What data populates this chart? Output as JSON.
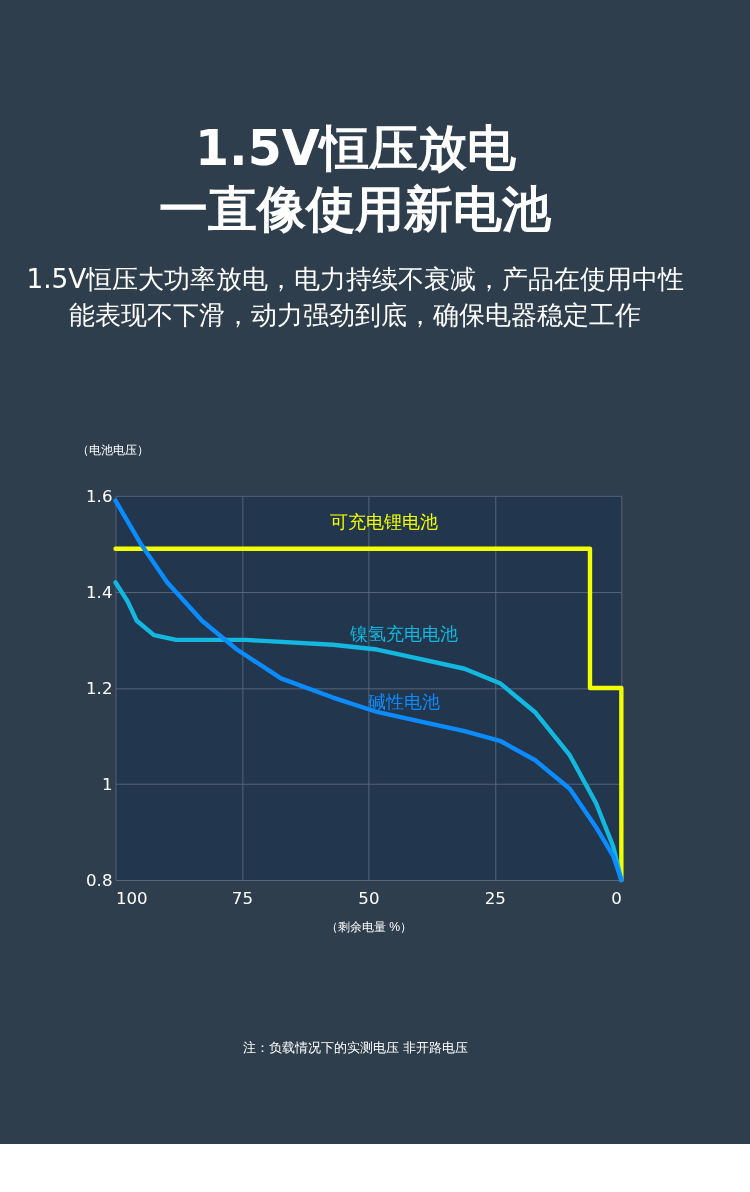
{
  "chart_data": {
    "type": "line",
    "title": "1.5V恒压放电一直像使用新电池",
    "subtitle": "1.5V恒压大功率放电，电力持续不衰减，产品在使用中性能表现不下滑，动力强劲到底，确保电器稳定工作",
    "xlabel": "（剩余电量 %）",
    "ylabel": "（电池电压）",
    "annotations": [
      "注：负载情况下的实测电压 非开路电压"
    ],
    "xlim": [
      100,
      0
    ],
    "xticks": [
      100,
      75,
      50,
      25,
      0
    ],
    "ylim": [
      0.8,
      1.6
    ],
    "yticks": [
      0.8,
      1.2,
      1.4,
      1.6,
      {
        "value": 1.0,
        "label": "1"
      }
    ],
    "grid": true,
    "legend": false,
    "marker": "none",
    "line_style": "solid",
    "series": [
      {
        "name": "可充电锂电池",
        "color": "#f2ff00",
        "x": [
          100,
          6.2,
          6.2,
          0,
          0
        ],
        "values": [
          1.49,
          1.49,
          1.2,
          1.2,
          0.8
        ]
      },
      {
        "name": "镍氢充电电池",
        "color": "#12b8df",
        "x": [
          100,
          97.6,
          95.8,
          92.4,
          88,
          74.2,
          57,
          48.3,
          39.6,
          31,
          24,
          17.1,
          10.2,
          5,
          1.6,
          0
        ],
        "values": [
          1.42,
          1.38,
          1.34,
          1.31,
          1.3,
          1.3,
          1.29,
          1.28,
          1.26,
          1.24,
          1.21,
          1.15,
          1.06,
          0.96,
          0.87,
          0.8
        ]
      },
      {
        "name": "碱性电池",
        "color": "#0a8cff",
        "x": [
          100,
          95,
          89.8,
          82.9,
          76,
          67.3,
          57,
          48.3,
          39.6,
          31,
          24,
          17.1,
          10.2,
          5,
          1.6,
          0
        ],
        "values": [
          1.59,
          1.5,
          1.42,
          1.34,
          1.28,
          1.22,
          1.18,
          1.15,
          1.13,
          1.11,
          1.09,
          1.05,
          0.99,
          0.91,
          0.85,
          0.8
        ]
      }
    ]
  }
}
